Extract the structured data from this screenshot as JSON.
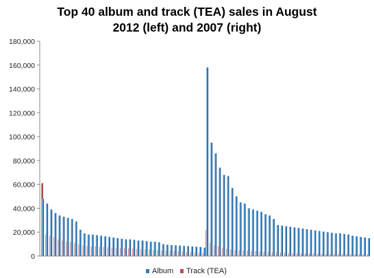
{
  "chart_data": {
    "type": "bar",
    "title": "Top 40 album and track (TEA) sales in August 2012 (left) and 2007 (right)",
    "title_lines": [
      "Top 40 album and track (TEA) sales in August",
      "2012 (left) and 2007 (right)"
    ],
    "xlabel": "",
    "ylabel": "",
    "ylim": [
      0,
      180000
    ],
    "yticks": [
      0,
      20000,
      40000,
      60000,
      80000,
      100000,
      120000,
      140000,
      160000,
      180000
    ],
    "ytick_labels": [
      "0",
      "20,000",
      "40,000",
      "60,000",
      "80,000",
      "100,000",
      "120,000",
      "140,000",
      "160,000",
      "180,000"
    ],
    "grid": false,
    "legend": "bottom",
    "colors": {
      "album": "#2e7fc1",
      "track": "#c0504d"
    },
    "groups": [
      "2012",
      "2007"
    ],
    "series": [
      {
        "name": "Album",
        "values_2012": [
          48000,
          44000,
          39000,
          36000,
          34000,
          33000,
          32000,
          31000,
          29000,
          22000,
          19000,
          18000,
          18000,
          17500,
          17000,
          16500,
          16000,
          15500,
          15000,
          14500,
          14000,
          14000,
          13500,
          13000,
          13000,
          12500,
          12000,
          12000,
          11500,
          10000,
          9500,
          9200,
          9000,
          8800,
          8500,
          8300,
          8000,
          7800,
          7500,
          7000
        ],
        "values_2007": [
          158000,
          95000,
          86000,
          74000,
          68000,
          67000,
          57000,
          50000,
          45000,
          44000,
          40000,
          39000,
          38000,
          37000,
          35000,
          34000,
          31000,
          26000,
          25500,
          25000,
          24500,
          24000,
          23500,
          23000,
          22500,
          22000,
          21500,
          21000,
          20500,
          20000,
          19500,
          19000,
          19000,
          18500,
          18000,
          17000,
          16500,
          16000,
          15500,
          15000
        ]
      },
      {
        "name": "Track (TEA)",
        "values_2012": [
          61000,
          18000,
          17000,
          16000,
          14000,
          13000,
          12000,
          12000,
          11000,
          10000,
          9000,
          8500,
          8000,
          8000,
          7800,
          7600,
          7400,
          7200,
          7000,
          6800,
          6600,
          6400,
          6200,
          6000,
          5800,
          5600,
          5400,
          5200,
          5000,
          4800,
          4600,
          4400,
          4200,
          4000,
          3800,
          3600,
          3400,
          3200,
          3000,
          2900
        ],
        "values_2007": [
          22000,
          11000,
          9000,
          8000,
          6500,
          6000,
          5500,
          5000,
          4800,
          4600,
          4400,
          4200,
          4000,
          3800,
          3600,
          3400,
          3200,
          3000,
          2900,
          2800,
          2700,
          2600,
          2500,
          2400,
          2300,
          2200,
          2100,
          2000,
          2000,
          1900,
          1900,
          1800,
          1800,
          1700,
          1700,
          1600,
          1600,
          1500,
          1500,
          1500
        ]
      }
    ]
  }
}
